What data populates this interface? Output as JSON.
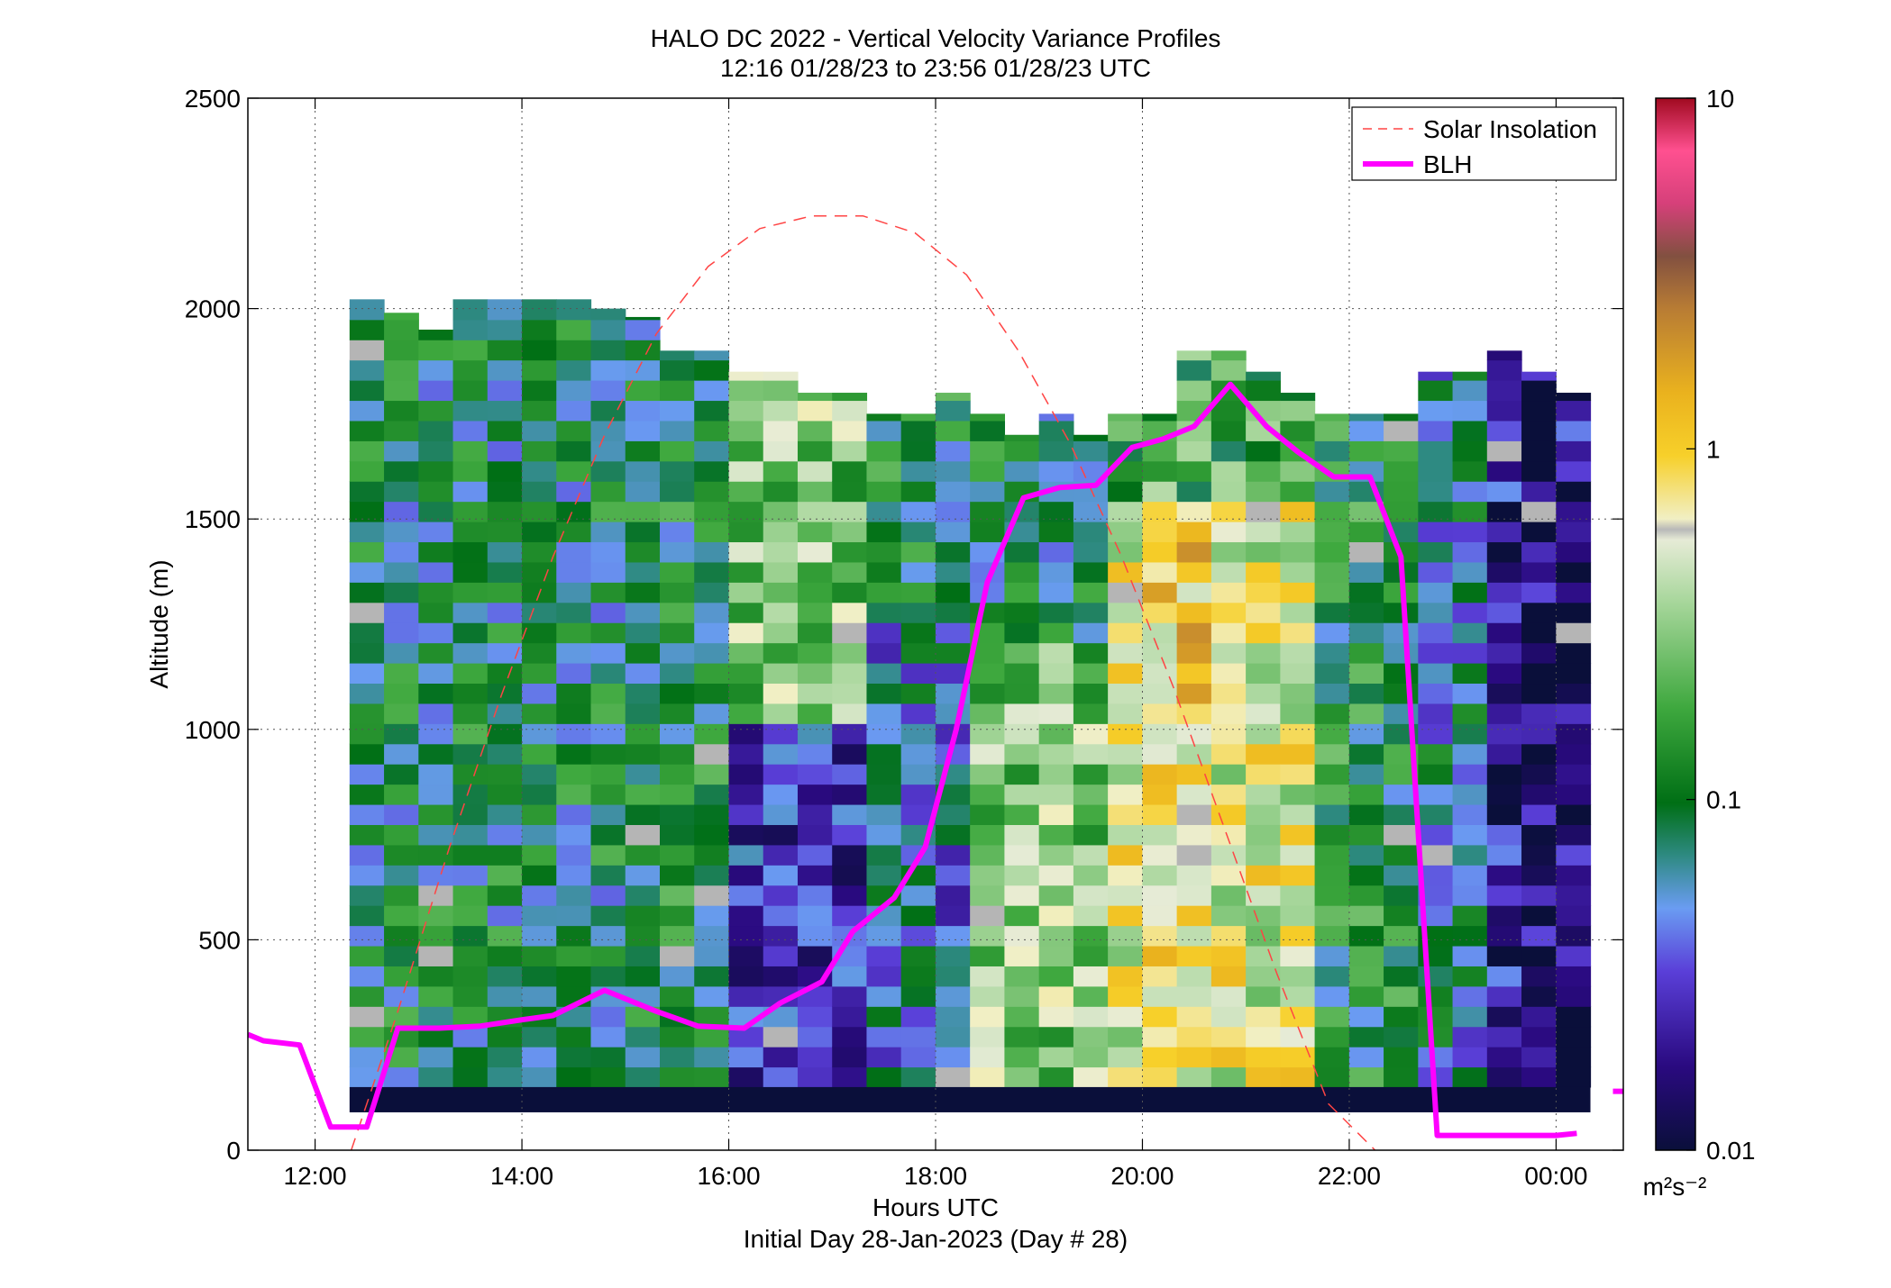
{
  "title_line1": "HALO DC 2022 - Vertical Velocity Variance Profiles",
  "title_line2": "12:16 01/28/23 to 23:56 01/28/23  UTC",
  "xlabel": "Hours UTC",
  "xlabel2": "Initial Day 28-Jan-2023 (Day # 28)",
  "ylabel": "Altitude (m)",
  "colorbar_units": "m²s⁻²",
  "colors": {
    "blh": "#ff00ff",
    "solar": "#ff4444",
    "missing_band": "#0a0f3a"
  },
  "chart_data": {
    "type": "heatmap",
    "xlim": [
      11.35,
      24.65
    ],
    "ylim": [
      0,
      2500
    ],
    "x_ticks": [
      12,
      14,
      16,
      18,
      20,
      22,
      24
    ],
    "x_tick_labels": [
      "12:00",
      "14:00",
      "16:00",
      "18:00",
      "20:00",
      "22:00",
      "00:00"
    ],
    "y_ticks": [
      0,
      500,
      1000,
      1500,
      2000,
      2500
    ],
    "y_tick_labels": [
      "0",
      "500",
      "1000",
      "1500",
      "2000",
      "2500"
    ],
    "grid": true,
    "legend_position": "top-right",
    "heatmap": {
      "x_start": 12.3333,
      "x_step": 0.3333,
      "columns": 36,
      "y_start": 150,
      "y_step": 48,
      "rows": 39,
      "bottom_band_altitude": [
        90,
        150
      ],
      "value_range": [
        0.01,
        10
      ],
      "scale": "log",
      "legend_title": "",
      "approx_column_tops_m": [
        2050,
        1990,
        1950,
        2100,
        2050,
        2050,
        2050,
        2000,
        1980,
        1900,
        1900,
        1850,
        1850,
        1800,
        1800,
        1750,
        1750,
        1800,
        1750,
        1700,
        1750,
        1700,
        1750,
        1750,
        1900,
        1900,
        1850,
        1800,
        1750,
        1750,
        1750,
        1850,
        1850,
        1900,
        1850,
        1800
      ]
    },
    "colorbar": {
      "scale": "log",
      "range": [
        0.01,
        10
      ],
      "ticks": [
        0.01,
        0.1,
        1,
        10
      ],
      "tick_labels": [
        "0.01",
        "0.1",
        "1",
        "10"
      ]
    },
    "series": [
      {
        "name": "Solar Insolation",
        "style": "dashed",
        "x": [
          12.35,
          12.8,
          13.3,
          13.8,
          14.3,
          14.8,
          15.3,
          15.8,
          16.3,
          16.8,
          17.3,
          17.8,
          18.3,
          18.8,
          19.3,
          19.8,
          20.3,
          20.8,
          21.3,
          21.8,
          22.25
        ],
        "y": [
          0,
          330,
          720,
          1080,
          1410,
          1700,
          1940,
          2100,
          2190,
          2220,
          2220,
          2180,
          2080,
          1900,
          1680,
          1410,
          1100,
          760,
          420,
          110,
          0
        ]
      },
      {
        "name": "BLH",
        "style": "solid",
        "x": [
          11.35,
          11.5,
          11.85,
          12.15,
          12.5,
          12.8,
          13.2,
          13.6,
          14.0,
          14.3,
          14.8,
          15.3,
          15.7,
          16.15,
          16.5,
          16.9,
          17.2,
          17.6,
          17.9,
          18.2,
          18.5,
          18.85,
          19.2,
          19.55,
          19.9,
          20.2,
          20.5,
          20.85,
          21.2,
          21.5,
          21.85,
          22.2,
          22.5,
          22.85,
          23.2,
          23.7,
          24.0,
          24.2
        ],
        "y": [
          275,
          260,
          250,
          55,
          55,
          290,
          290,
          295,
          310,
          320,
          380,
          330,
          295,
          290,
          350,
          400,
          520,
          600,
          720,
          1000,
          1350,
          1550,
          1575,
          1580,
          1670,
          1690,
          1720,
          1820,
          1720,
          1660,
          1600,
          1600,
          1410,
          35,
          35,
          35,
          35,
          40
        ]
      },
      {
        "name": "",
        "style": "solid",
        "x": [
          24.55,
          24.7
        ],
        "y": [
          140,
          140
        ]
      }
    ]
  }
}
